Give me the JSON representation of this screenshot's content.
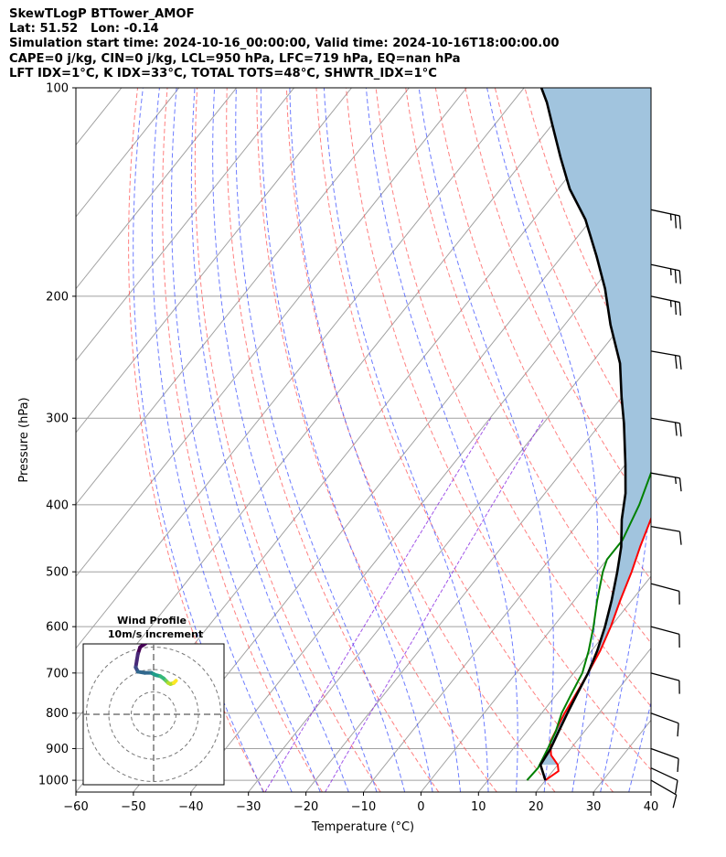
{
  "header": {
    "line1": "SkewTLogP BTTower_AMOF",
    "line2": "Lat: 51.52   Lon: -0.14",
    "line3": "Simulation start time: 2024-10-16_00:00:00, Valid time: 2024-10-16T18:00:00.00",
    "line4": "CAPE=0 j/kg, CIN=0 j/kg, LCL=950 hPa, LFC=719 hPa, EQ=nan hPa",
    "line5": "LFT IDX=1°C, K IDX=33°C, TOTAL TOTS=48°C, SHWTR_IDX=1°C"
  },
  "chart_data": {
    "type": "skewt",
    "xlabel": "Temperature (°C)",
    "ylabel": "Pressure (hPa)",
    "xlim": [
      -60,
      40
    ],
    "ylim": [
      1040,
      100
    ],
    "x_ticks": [
      "−60",
      "−50",
      "−40",
      "−30",
      "−20",
      "−10",
      "0",
      "10",
      "20",
      "30",
      "40"
    ],
    "y_ticks": [
      "100",
      "200",
      "300",
      "400",
      "500",
      "600",
      "700",
      "800",
      "900",
      "1000"
    ],
    "y_tick_values": [
      100,
      200,
      300,
      400,
      500,
      600,
      700,
      800,
      900,
      1000
    ],
    "series": [
      {
        "color": "#ff0000",
        "points": [
          [
            20,
            1000
          ],
          [
            21,
            970
          ],
          [
            20,
            950
          ],
          [
            17.5,
            920
          ],
          [
            15.5,
            880
          ],
          [
            14,
            800
          ],
          [
            13,
            730
          ],
          [
            12.5,
            700
          ],
          [
            11.5,
            650
          ],
          [
            10,
            600
          ],
          [
            8,
            550
          ],
          [
            6,
            500
          ],
          [
            4,
            460
          ],
          [
            1,
            400
          ],
          [
            -2,
            350
          ],
          [
            -5,
            300
          ],
          [
            -9.5,
            265
          ],
          [
            -13.5,
            235
          ],
          [
            -16,
            225
          ],
          [
            -15,
            200
          ],
          [
            -18,
            180
          ],
          [
            -22,
            160
          ],
          [
            -28,
            140
          ],
          [
            -34,
            125
          ],
          [
            -42,
            112
          ],
          [
            -48,
            100
          ]
        ]
      },
      {
        "color": "#008000",
        "points": [
          [
            16.8,
            1000
          ],
          [
            17,
            960
          ],
          [
            16,
            900
          ],
          [
            15,
            850
          ],
          [
            13.5,
            800
          ],
          [
            12.5,
            750
          ],
          [
            11.5,
            700
          ],
          [
            9.5,
            650
          ],
          [
            7,
            600
          ],
          [
            4,
            550
          ],
          [
            1,
            500
          ],
          [
            0,
            480
          ],
          [
            0,
            450
          ],
          [
            -2,
            400
          ],
          [
            -5,
            350
          ],
          [
            -9,
            300
          ],
          [
            -12.5,
            265
          ],
          [
            -15.5,
            230
          ],
          [
            -16.5,
            215
          ],
          [
            -17.5,
            200
          ],
          [
            -18.5,
            185
          ],
          [
            -21,
            170
          ],
          [
            -26,
            155
          ],
          [
            -35,
            135
          ],
          [
            -43,
            115
          ],
          [
            -50,
            100
          ]
        ]
      },
      {
        "color": "#000000",
        "points": [
          [
            20,
            1000
          ],
          [
            17,
            950
          ],
          [
            16.5,
            900
          ],
          [
            15.5,
            850
          ],
          [
            14.5,
            800
          ],
          [
            13.5,
            750
          ],
          [
            12.5,
            700
          ],
          [
            11,
            650
          ],
          [
            9,
            600
          ],
          [
            6.5,
            550
          ],
          [
            3.5,
            500
          ],
          [
            0.7,
            460
          ],
          [
            -3,
            420
          ],
          [
            -6,
            385
          ],
          [
            -10,
            350
          ],
          [
            -16,
            305
          ],
          [
            -20,
            280
          ],
          [
            -25,
            250
          ],
          [
            -32,
            220
          ],
          [
            -38,
            195
          ],
          [
            -44,
            175
          ],
          [
            -51,
            155
          ],
          [
            -58,
            140
          ],
          [
            -64,
            126
          ],
          [
            -70,
            113
          ],
          [
            -74,
            105
          ],
          [
            -77,
            100
          ]
        ]
      }
    ],
    "cape_fill": "#a1c4de",
    "isotherm_color": "#a0a0a0",
    "dry_adiabat_color": "#ff5555",
    "moist_adiabat_color": "#3c50ff",
    "mixing_ratio_color": "#8a2be2",
    "wind_barbs": [
      {
        "p": 150,
        "speed_kt": 25,
        "dir_deg": 282
      },
      {
        "p": 180,
        "speed_kt": 25,
        "dir_deg": 282
      },
      {
        "p": 200,
        "speed_kt": 25,
        "dir_deg": 282
      },
      {
        "p": 240,
        "speed_kt": 20,
        "dir_deg": 280
      },
      {
        "p": 300,
        "speed_kt": 20,
        "dir_deg": 280
      },
      {
        "p": 360,
        "speed_kt": 15,
        "dir_deg": 280
      },
      {
        "p": 430,
        "speed_kt": 10,
        "dir_deg": 280
      },
      {
        "p": 520,
        "speed_kt": 10,
        "dir_deg": 285
      },
      {
        "p": 600,
        "speed_kt": 10,
        "dir_deg": 285
      },
      {
        "p": 700,
        "speed_kt": 10,
        "dir_deg": 285
      },
      {
        "p": 800,
        "speed_kt": 10,
        "dir_deg": 290
      },
      {
        "p": 900,
        "speed_kt": 10,
        "dir_deg": 290
      },
      {
        "p": 960,
        "speed_kt": 10,
        "dir_deg": 295
      },
      {
        "p": 1000,
        "speed_kt": 10,
        "dir_deg": 300
      }
    ],
    "inset": {
      "title_line1": "Wind Profile",
      "title_line2": "10m/s increment",
      "rings_ms": [
        10,
        20,
        30
      ],
      "hodograph_uv": [
        [
          -3,
          -32
        ],
        [
          -6,
          -30
        ],
        [
          -7,
          -27
        ],
        [
          -7.5,
          -24
        ],
        [
          -8,
          -21
        ],
        [
          -7,
          -19
        ],
        [
          -4,
          -18.5
        ],
        [
          -1,
          -18.5
        ],
        [
          0,
          -18
        ],
        [
          1,
          -17.5
        ],
        [
          3,
          -17
        ],
        [
          4.5,
          -16
        ],
        [
          5.5,
          -15
        ],
        [
          6.5,
          -14
        ],
        [
          7.5,
          -13.5
        ],
        [
          9,
          -14
        ],
        [
          10,
          -15
        ]
      ],
      "hodograph_colors": [
        "#440154",
        "#482878",
        "#3e4989",
        "#31688e",
        "#26828e",
        "#1f9e89",
        "#35b779",
        "#6ece58",
        "#b5de2b",
        "#fde725"
      ]
    }
  }
}
